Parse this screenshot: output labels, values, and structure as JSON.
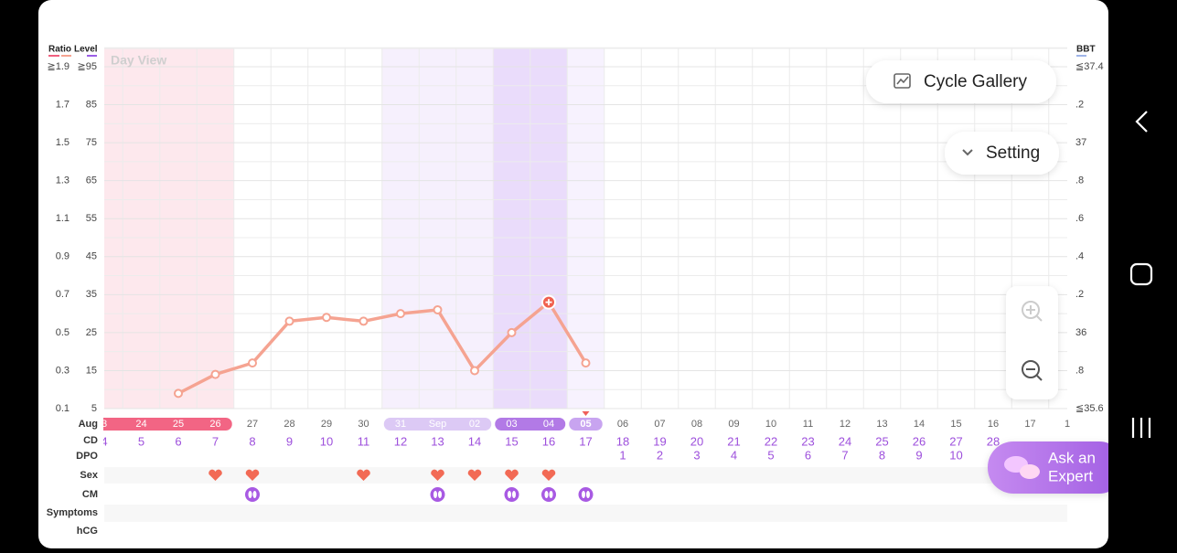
{
  "chart_data": {
    "type": "line",
    "title": "Day View",
    "y2label": "Ratio",
    "ylabel": "Level",
    "bbt_label": "BBT",
    "month_label": "Aug",
    "categories": [
      "3",
      "24",
      "25",
      "26",
      "27",
      "28",
      "29",
      "30",
      "31",
      "Sep",
      "02",
      "03",
      "04",
      "05",
      "06",
      "07",
      "08",
      "09",
      "10",
      "11",
      "12",
      "13",
      "14",
      "15",
      "16",
      "17",
      "1"
    ],
    "values": [
      null,
      null,
      9,
      14,
      17,
      28,
      29,
      28,
      30,
      31,
      15,
      25,
      33,
      17,
      null,
      null,
      null,
      null,
      null,
      null,
      null,
      null,
      null,
      null,
      null,
      null,
      null
    ],
    "color": "#f5a391",
    "ylim": [
      5,
      95
    ],
    "yticks": [
      {
        "value": 95,
        "label": "≧95"
      },
      85,
      75,
      65,
      55,
      45,
      35,
      25,
      15,
      5
    ],
    "y2lim": [
      0.1,
      1.9
    ],
    "y2ticks": [
      {
        "value": 1.9,
        "label": "≧1.9"
      },
      1.7,
      1.5,
      1.3,
      1.1,
      0.9,
      0.7,
      0.5,
      0.3,
      0.1
    ],
    "bbt_lim": [
      35.6,
      37.4
    ],
    "bbt_ticks": [
      {
        "value": 37.4,
        "label": "≦37.4"
      },
      {
        "value": 37.2,
        "label": ".2"
      },
      37,
      {
        "value": 36.8,
        "label": ".8"
      },
      {
        "value": 36.6,
        "label": ".6"
      },
      {
        "value": 36.4,
        "label": ".4"
      },
      {
        "value": 36.2,
        "label": ".2"
      },
      36,
      {
        "value": 35.8,
        "label": ".8"
      },
      {
        "value": 35.6,
        "label": "≦35.6"
      }
    ],
    "grid": true
  },
  "rows": {
    "cd": {
      "label": "CD",
      "values": [
        4,
        5,
        6,
        7,
        8,
        9,
        10,
        11,
        12,
        13,
        14,
        15,
        16,
        17,
        18,
        19,
        20,
        21,
        22,
        23,
        24,
        25,
        26,
        27,
        28
      ]
    },
    "dpo": {
      "label": "DPO",
      "values": [
        null,
        null,
        null,
        null,
        null,
        null,
        null,
        null,
        null,
        null,
        null,
        null,
        null,
        null,
        1,
        2,
        3,
        4,
        5,
        6,
        7,
        8,
        9,
        10
      ]
    },
    "sex": {
      "label": "Sex"
    },
    "cm": {
      "label": "CM"
    },
    "symptoms": {
      "label": "Symptoms"
    },
    "hcg": {
      "label": "hCG"
    }
  },
  "buttons": {
    "cycle_gallery": "Cycle Gallery",
    "setting": "Setting",
    "ask_expert": [
      "Ask an",
      "Expert"
    ]
  }
}
